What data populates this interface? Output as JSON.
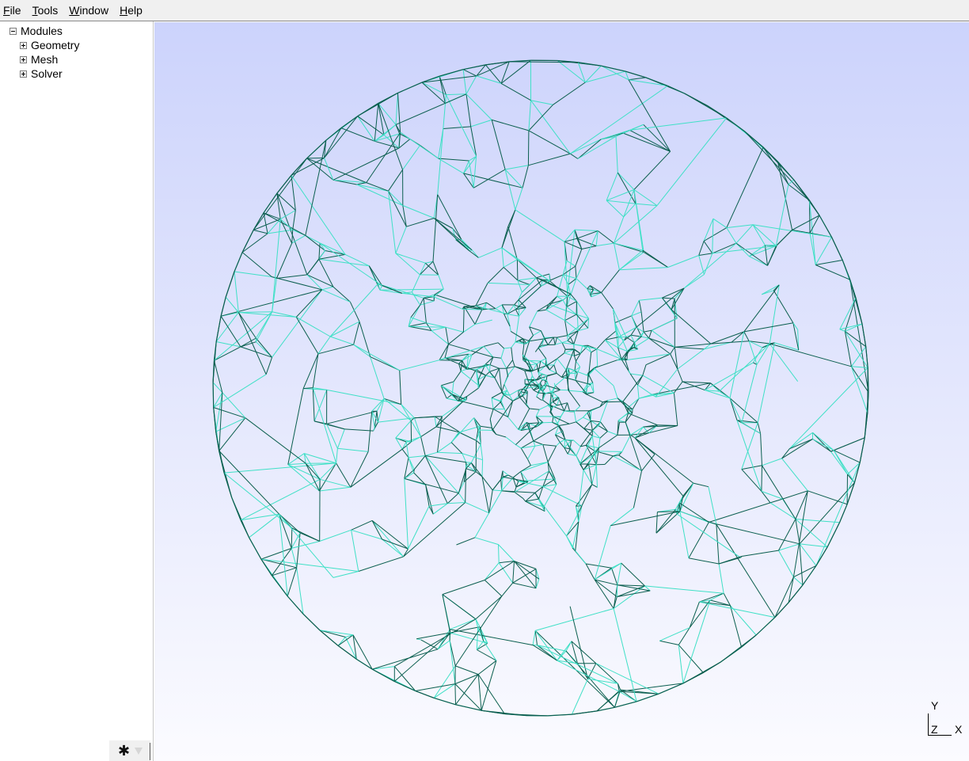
{
  "menubar": {
    "items": [
      {
        "prefix": "",
        "underline": "F",
        "rest": "ile"
      },
      {
        "prefix": "",
        "underline": "T",
        "rest": "ools"
      },
      {
        "prefix": "",
        "underline": "W",
        "rest": "indow"
      },
      {
        "prefix": "",
        "underline": "H",
        "rest": "elp"
      }
    ]
  },
  "tree": {
    "root": {
      "label": "Modules",
      "state": "expanded"
    },
    "children": [
      {
        "label": "Geometry",
        "state": "collapsed"
      },
      {
        "label": "Mesh",
        "state": "collapsed"
      },
      {
        "label": "Solver",
        "state": "collapsed"
      }
    ]
  },
  "sidebar_footer": {
    "settings_icon": "gear-icon",
    "dropdown_icon": "triangle-down-icon"
  },
  "viewport": {
    "background_top": "#ccd3fc",
    "background_bottom": "#fbfbff",
    "mesh_colors": {
      "dark": "#0a5e4e",
      "light": "#3fe0c6"
    },
    "axes": {
      "y": "Y",
      "z": "Z",
      "x": "X"
    }
  }
}
